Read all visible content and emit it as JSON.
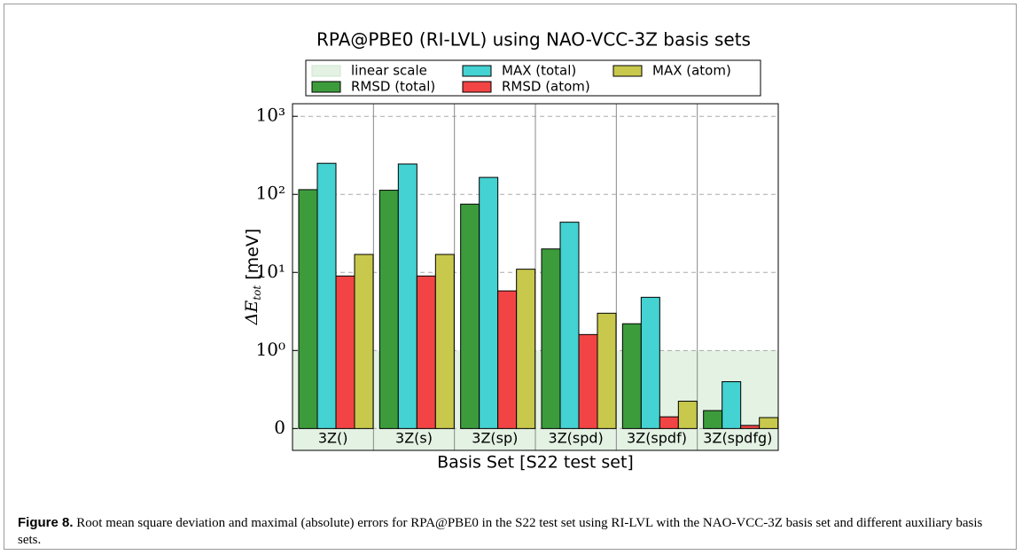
{
  "chart_data": {
    "type": "bar",
    "title": "RPA@PBE0 (RI-LVL) using NAO-VCC-3Z basis sets",
    "x_label": "Basis Set [S22 test set]",
    "y_label": [
      "ΔE",
      "tot",
      " [meV]"
    ],
    "categories": [
      "3Z()",
      "3Z(s)",
      "3Z(sp)",
      "3Z(spd)",
      "3Z(spdf)",
      "3Z(spdfg)"
    ],
    "series": [
      {
        "name": "RMSD (total)",
        "color": "#3c9c3c",
        "values": [
          115,
          113,
          75,
          20,
          2.2,
          0.23
        ]
      },
      {
        "name": "MAX (total)",
        "color": "#44d2d2",
        "values": [
          250,
          245,
          165,
          44,
          4.8,
          0.6
        ]
      },
      {
        "name": "RMSD (atom)",
        "color": "#f24444",
        "values": [
          9,
          9,
          5.8,
          1.6,
          0.15,
          0.04
        ]
      },
      {
        "name": "MAX (atom)",
        "color": "#c8c84c",
        "values": [
          17,
          17,
          11,
          3,
          0.35,
          0.14
        ]
      }
    ],
    "scale": "symlog",
    "linthresh": 1,
    "band_name": "linear scale",
    "band_color": "#e3f2e3",
    "ylim": [
      -0.28,
      1450
    ],
    "yticks": [
      0,
      {
        "value": 1,
        "label": "10⁰"
      },
      {
        "value": 10,
        "label": "10¹"
      },
      {
        "value": 100,
        "label": "10²"
      },
      {
        "value": 1000,
        "label": "10³"
      }
    ],
    "grid": true
  },
  "caption": {
    "label": "Figure 8.",
    "text": "Root mean square deviation and maximal (absolute) errors for RPA@PBE0 in the S22 test set using RI-LVL with the NAO-VCC-3Z basis set and different auxiliary basis sets."
  }
}
